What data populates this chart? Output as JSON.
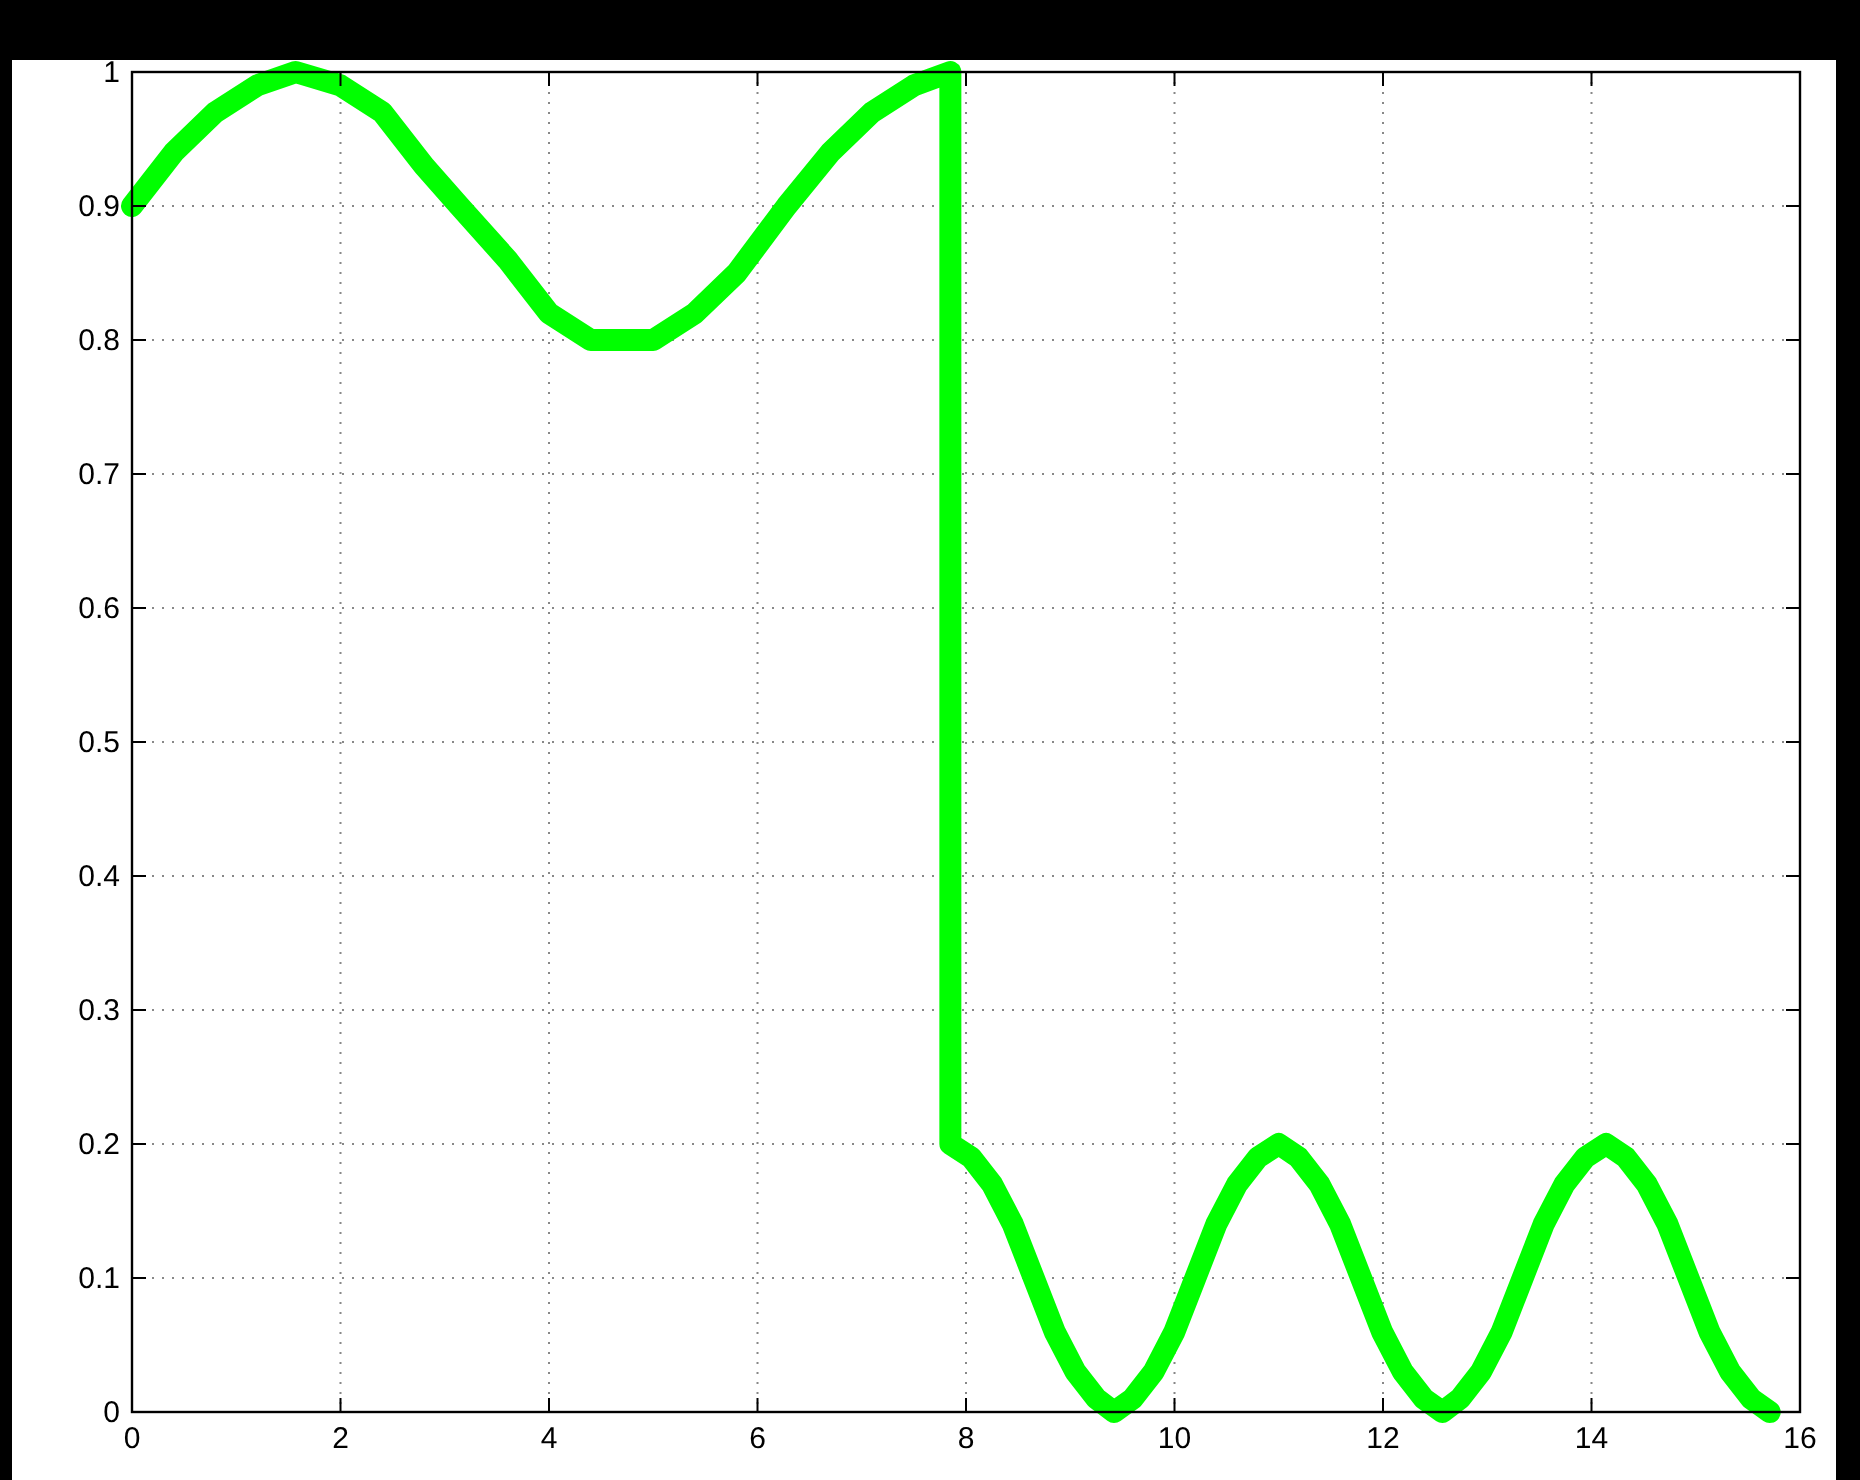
{
  "chart_data": {
    "type": "line",
    "xlim": [
      0,
      16
    ],
    "xticks": [
      0,
      2,
      4,
      6,
      8,
      10,
      12,
      14,
      16
    ],
    "ylim": [
      0,
      1
    ],
    "yticks": [
      0,
      0.1,
      0.2,
      0.3,
      0.4,
      0.5,
      0.6,
      0.7,
      0.8,
      0.9,
      1
    ],
    "grid": true,
    "line_style": "solid",
    "marker": "none",
    "series": [
      {
        "color": "#00ff00",
        "x": [
          0,
          0.4,
          0.8,
          1.2,
          1.57,
          2.0,
          2.4,
          2.8,
          3.14,
          3.6,
          4.0,
          4.4,
          4.71,
          5.0,
          5.4,
          5.8,
          6.28,
          6.7,
          7.1,
          7.5,
          7.85,
          7.85,
          8.05,
          8.25,
          8.45,
          8.65,
          8.85,
          9.05,
          9.25,
          9.42,
          9.6,
          9.8,
          10.0,
          10.2,
          10.4,
          10.6,
          10.8,
          11.0,
          11.19,
          11.39,
          11.59,
          11.79,
          11.99,
          12.19,
          12.39,
          12.57,
          12.74,
          12.94,
          13.14,
          13.34,
          13.54,
          13.74,
          13.94,
          14.14,
          14.33,
          14.53,
          14.73,
          14.93,
          15.13,
          15.33,
          15.53,
          15.71
        ],
        "values": [
          0.9,
          0.94,
          0.97,
          0.99,
          1.0,
          0.99,
          0.97,
          0.93,
          0.9,
          0.86,
          0.82,
          0.8,
          0.8,
          0.8,
          0.82,
          0.85,
          0.9,
          0.94,
          0.97,
          0.99,
          1.0,
          0.2,
          0.19,
          0.17,
          0.14,
          0.1,
          0.06,
          0.03,
          0.01,
          0,
          0.01,
          0.03,
          0.06,
          0.1,
          0.14,
          0.17,
          0.19,
          0.2,
          0.19,
          0.17,
          0.14,
          0.1,
          0.06,
          0.03,
          0.01,
          0,
          0.01,
          0.03,
          0.06,
          0.1,
          0.14,
          0.17,
          0.19,
          0.2,
          0.19,
          0.17,
          0.14,
          0.1,
          0.06,
          0.03,
          0.01,
          0
        ]
      }
    ]
  }
}
